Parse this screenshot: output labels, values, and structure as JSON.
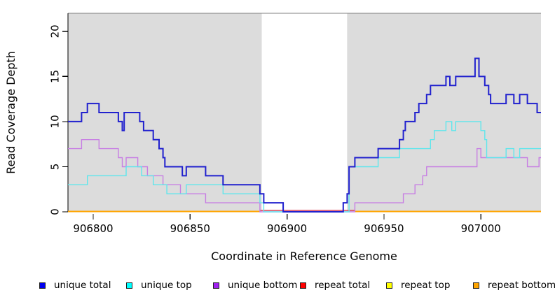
{
  "figure": {
    "xlabel": "Coordinate in Reference Genome",
    "ylabel": "Read Coverage Depth"
  },
  "legend": {
    "items": [
      {
        "label": "unique total",
        "color": "#0000EE"
      },
      {
        "label": "unique top",
        "color": "#00FFFF"
      },
      {
        "label": "unique bottom",
        "color": "#A020F0"
      },
      {
        "label": "repeat total",
        "color": "#FF0000"
      },
      {
        "label": "repeat top",
        "color": "#FFFF00"
      },
      {
        "label": "repeat bottom",
        "color": "#FFA500"
      }
    ]
  },
  "chart_data": {
    "type": "line",
    "subtype": "step-coverage",
    "title": "",
    "xlabel": "Coordinate in Reference Genome",
    "ylabel": "Read Coverage Depth",
    "xlim": [
      906787,
      907031
    ],
    "ylim": [
      0,
      22
    ],
    "grid": false,
    "legend_position": "bottom",
    "x_ticks": [
      {
        "value": 906800,
        "label": "906800"
      },
      {
        "value": 906850,
        "label": "906850"
      },
      {
        "value": 906900,
        "label": "906900"
      },
      {
        "value": 906950,
        "label": "906950"
      },
      {
        "value": 907000,
        "label": "907000"
      }
    ],
    "y_ticks": [
      {
        "value": 0,
        "label": "0"
      },
      {
        "value": 5,
        "label": "5"
      },
      {
        "value": 10,
        "label": "10"
      },
      {
        "value": 15,
        "label": "15"
      },
      {
        "value": 20,
        "label": "20"
      }
    ],
    "background": {
      "plot_fill": "#DCDCDC",
      "repeat_region_fill": "#FFFFFF",
      "top_border_color": "#808080"
    },
    "repeat_region": {
      "start": 906887,
      "end": 906931
    },
    "series": [
      {
        "name": "repeat top",
        "color": "#FFFF00",
        "width": 1.5,
        "y_offset": -0.5,
        "ranges": [
          [
            906787,
            906886
          ],
          [
            906935,
            907031
          ]
        ],
        "steps": [
          [
            906787,
            0
          ]
        ]
      },
      {
        "name": "repeat total",
        "color": "#D84054",
        "width": 1.4,
        "y_offset": -2,
        "ranges": [
          [
            906886,
            906935
          ]
        ],
        "steps": [
          [
            906886,
            0
          ]
        ]
      },
      {
        "name": "repeat bottom",
        "color": "#FFA500",
        "width": 2,
        "y_offset": -0.5,
        "ranges": [
          [
            906787,
            906886
          ],
          [
            906935,
            907031
          ]
        ],
        "steps": [
          [
            906787,
            0
          ]
        ]
      },
      {
        "name": "unique bottom",
        "color": "#C77EE3",
        "width": 1.4,
        "steps": [
          [
            906787,
            7
          ],
          [
            906794,
            8
          ],
          [
            906803,
            7
          ],
          [
            906813,
            6
          ],
          [
            906815,
            5
          ],
          [
            906817,
            6
          ],
          [
            906823,
            5
          ],
          [
            906828,
            4
          ],
          [
            906836,
            3
          ],
          [
            906845,
            2
          ],
          [
            906858,
            1
          ],
          [
            906886,
            0
          ],
          [
            906935,
            1
          ],
          [
            906960,
            2
          ],
          [
            906966,
            3
          ],
          [
            906970,
            4
          ],
          [
            906972,
            5
          ],
          [
            906998,
            7
          ],
          [
            907000,
            6
          ],
          [
            907024,
            5
          ],
          [
            907030,
            6
          ]
        ]
      },
      {
        "name": "unique top",
        "color": "#5FE6EC",
        "width": 1.4,
        "steps": [
          [
            906787,
            3
          ],
          [
            906797,
            4
          ],
          [
            906817,
            5
          ],
          [
            906825,
            4
          ],
          [
            906831,
            3
          ],
          [
            906838,
            2
          ],
          [
            906848,
            3
          ],
          [
            906867,
            2
          ],
          [
            906886,
            1
          ],
          [
            906888,
            0
          ],
          [
            906932,
            5
          ],
          [
            906947,
            6
          ],
          [
            906958,
            7
          ],
          [
            906974,
            8
          ],
          [
            906976,
            9
          ],
          [
            906982,
            10
          ],
          [
            906985,
            9
          ],
          [
            906987,
            10
          ],
          [
            907000,
            9
          ],
          [
            907002,
            8
          ],
          [
            907003,
            6
          ],
          [
            907013,
            7
          ],
          [
            907017,
            6
          ],
          [
            907020,
            7
          ]
        ]
      },
      {
        "name": "unique total",
        "color": "#2121CE",
        "width": 2,
        "steps": [
          [
            906787,
            10
          ],
          [
            906794,
            11
          ],
          [
            906797,
            12
          ],
          [
            906803,
            11
          ],
          [
            906813,
            10
          ],
          [
            906815,
            9
          ],
          [
            906816,
            11
          ],
          [
            906824,
            10
          ],
          [
            906826,
            9
          ],
          [
            906831,
            8
          ],
          [
            906834,
            7
          ],
          [
            906836,
            6
          ],
          [
            906837,
            5
          ],
          [
            906846,
            4
          ],
          [
            906848,
            5
          ],
          [
            906858,
            4
          ],
          [
            906867,
            3
          ],
          [
            906886,
            2
          ],
          [
            906888,
            1
          ],
          [
            906898,
            0
          ],
          [
            906929,
            1
          ],
          [
            906931,
            2
          ],
          [
            906932,
            5
          ],
          [
            906935,
            6
          ],
          [
            906947,
            7
          ],
          [
            906958,
            8
          ],
          [
            906960,
            9
          ],
          [
            906961,
            10
          ],
          [
            906966,
            11
          ],
          [
            906968,
            12
          ],
          [
            906972,
            13
          ],
          [
            906974,
            14
          ],
          [
            906982,
            15
          ],
          [
            906984,
            14
          ],
          [
            906987,
            15
          ],
          [
            906997,
            17
          ],
          [
            906999,
            15
          ],
          [
            907002,
            14
          ],
          [
            907004,
            13
          ],
          [
            907005,
            12
          ],
          [
            907013,
            13
          ],
          [
            907017,
            12
          ],
          [
            907020,
            13
          ],
          [
            907024,
            12
          ],
          [
            907029,
            11
          ]
        ]
      }
    ]
  }
}
